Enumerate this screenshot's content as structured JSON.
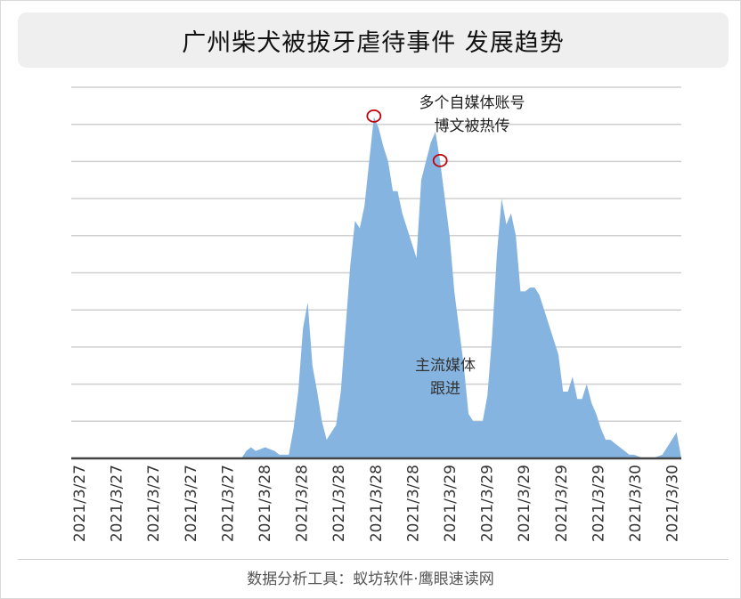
{
  "title": "广州柴犬被拔牙虐待事件 发展趋势",
  "footer": "数据分析工具：蚁坊软件·鹰眼速读网",
  "chart_data": {
    "type": "area",
    "title": "广州柴犬被拔牙虐待事件 发展趋势",
    "xlabel": "",
    "ylabel": "",
    "ylim": [
      0,
      100
    ],
    "grid": true,
    "legend": "none",
    "fill_color": "#85b4e0",
    "marker_color": "#c0000b",
    "x_tick_labels": [
      "2021/3/27",
      "2021/3/27",
      "2021/3/27",
      "2021/3/27",
      "2021/3/27",
      "2021/3/28",
      "2021/3/28",
      "2021/3/28",
      "2021/3/28",
      "2021/3/28",
      "2021/3/29",
      "2021/3/29",
      "2021/3/29",
      "2021/3/29",
      "2021/3/29",
      "2021/3/30",
      "2021/3/30"
    ],
    "series": [
      {
        "values": [
          0,
          0,
          0,
          0,
          0,
          0,
          0,
          0,
          0,
          0,
          0,
          0,
          0,
          0,
          0,
          0,
          0,
          0,
          0,
          0,
          0,
          0,
          0,
          0,
          0,
          0,
          0,
          0,
          0,
          0,
          0,
          0,
          0,
          0,
          0,
          0,
          0,
          2,
          3,
          2,
          2.5,
          3,
          2.5,
          2,
          1,
          1,
          1,
          8,
          18,
          35,
          42,
          25,
          18,
          10,
          5,
          7,
          9,
          18,
          35,
          52,
          64,
          62,
          68,
          80,
          92,
          89,
          84,
          80,
          72,
          72,
          66,
          62,
          58,
          54,
          75,
          80,
          85,
          88,
          80,
          70,
          60,
          45,
          35,
          25,
          12,
          10,
          10,
          10,
          17,
          33,
          55,
          70,
          63,
          66,
          60,
          45,
          45,
          46,
          46,
          44,
          40,
          36,
          32,
          28,
          18,
          18,
          22,
          16,
          16,
          20,
          15,
          12,
          8,
          5,
          5,
          4,
          3,
          2,
          1,
          1,
          0.5,
          0,
          0,
          0,
          0.5,
          1,
          3,
          5,
          7,
          0
        ],
        "peaks": [
          64,
          78
        ]
      }
    ],
    "annotations": [
      {
        "lines": [
          "多个自媒体账号",
          "博文被热传"
        ]
      },
      {
        "lines": [
          "主流媒体",
          "跟进"
        ]
      }
    ]
  }
}
